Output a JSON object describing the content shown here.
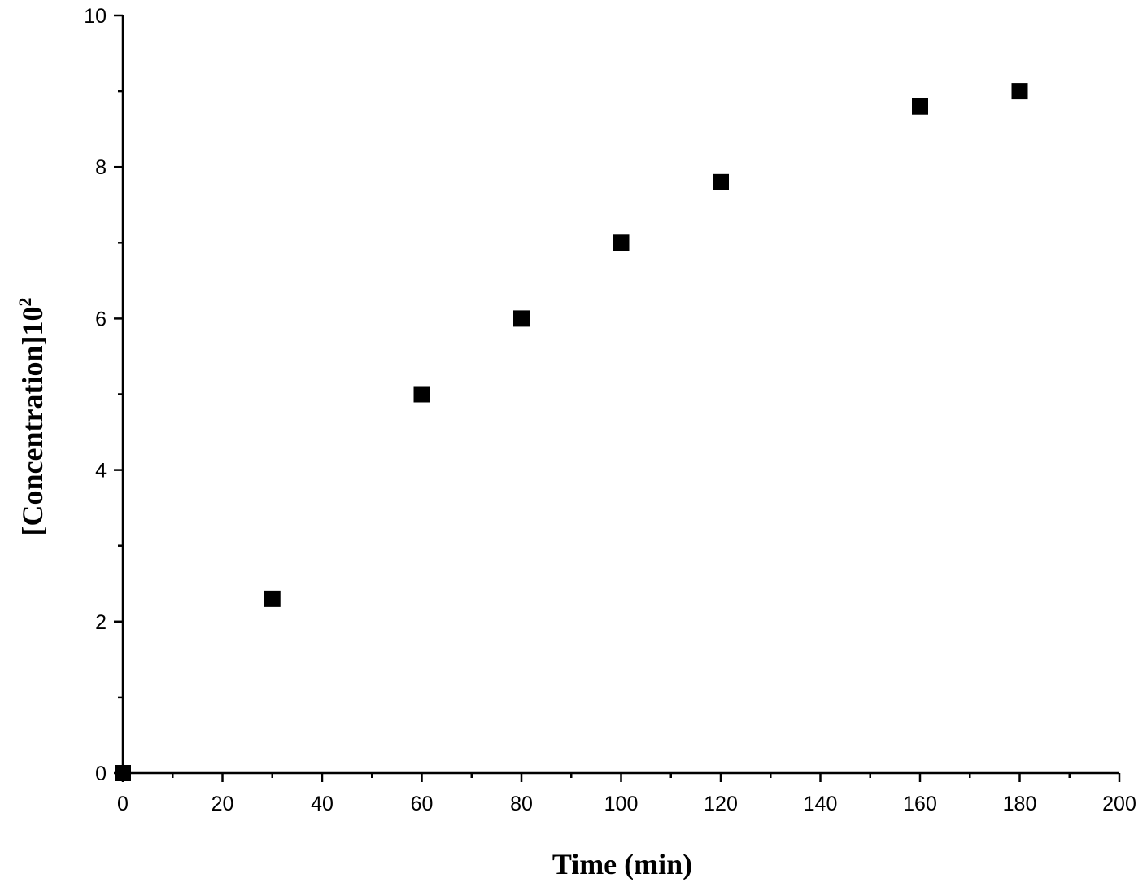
{
  "chart_data": {
    "type": "scatter",
    "title": "",
    "xlabel": "Time (min)",
    "ylabel": "[Concentration]10",
    "ylabel_superscript": "2",
    "xlim": [
      0,
      200
    ],
    "ylim": [
      0,
      10
    ],
    "x_ticks": [
      0,
      20,
      40,
      60,
      80,
      100,
      120,
      140,
      160,
      180,
      200
    ],
    "x_tick_labels": [
      "0",
      "20",
      "40",
      "60",
      "80",
      "100",
      "120",
      "140",
      "160",
      "180",
      "200"
    ],
    "x_minor_ticks": [
      10,
      30,
      50,
      70,
      90,
      110,
      130,
      150,
      170,
      190
    ],
    "y_ticks": [
      0,
      2,
      4,
      6,
      8,
      10
    ],
    "y_tick_labels": [
      "0",
      "2",
      "4",
      "6",
      "8",
      "10"
    ],
    "y_minor_ticks": [
      1,
      3,
      5,
      7,
      9
    ],
    "grid": false,
    "legend": "none",
    "marker": "square",
    "marker_color": "#000000",
    "series": [
      {
        "x": [
          0,
          30,
          60,
          80,
          100,
          120,
          160,
          180
        ],
        "y": [
          0,
          2.3,
          5.0,
          6.0,
          7.0,
          7.8,
          8.8,
          9.0
        ]
      }
    ]
  }
}
